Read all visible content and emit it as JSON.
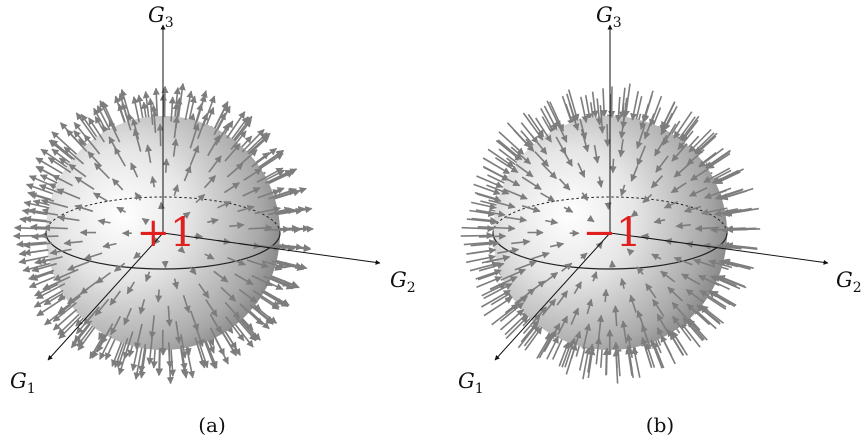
{
  "panels": [
    {
      "caption": "(a)",
      "charge_label": "+1",
      "field_direction": "outward",
      "axes": {
        "g1": "G",
        "g1_sub": "1",
        "g2": "G",
        "g2_sub": "2",
        "g3": "G",
        "g3_sub": "3"
      }
    },
    {
      "caption": "(b)",
      "charge_label": "−1",
      "field_direction": "inward",
      "axes": {
        "g1": "G",
        "g1_sub": "1",
        "g2": "G",
        "g2_sub": "2",
        "g3": "G",
        "g3_sub": "3"
      }
    }
  ],
  "colors": {
    "arrow": "#7d7d7d",
    "charge": "#e0201f",
    "axis": "#111111",
    "sphere_light": "#ffffff",
    "sphere_dark": "#6a6a6a"
  }
}
